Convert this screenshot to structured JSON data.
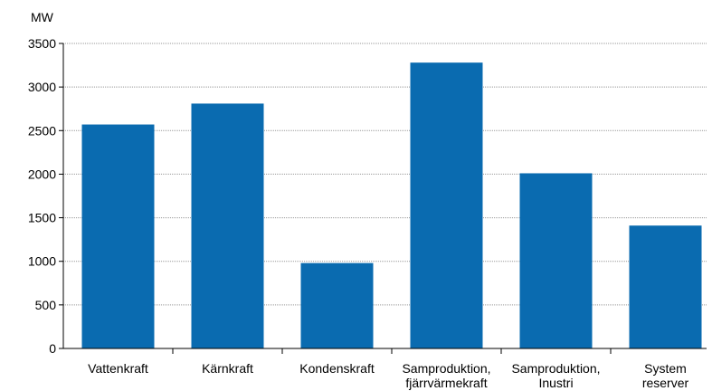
{
  "chart_data": {
    "type": "bar",
    "y_label": "MW",
    "categories": [
      [
        "Vattenkraft"
      ],
      [
        "Kärnkraft"
      ],
      [
        "Kondenskraft"
      ],
      [
        "Samproduktion,",
        "fjärrvärmekraft"
      ],
      [
        "Samproduktion,",
        "Inustri"
      ],
      [
        "System",
        "reserver"
      ]
    ],
    "values": [
      2570,
      2810,
      980,
      3280,
      2010,
      1410
    ],
    "color": "#0a6bb0",
    "ylim": [
      0,
      3500
    ],
    "yticks": [
      0,
      500,
      1000,
      1500,
      2000,
      2500,
      3000,
      3500
    ],
    "grid": true
  }
}
